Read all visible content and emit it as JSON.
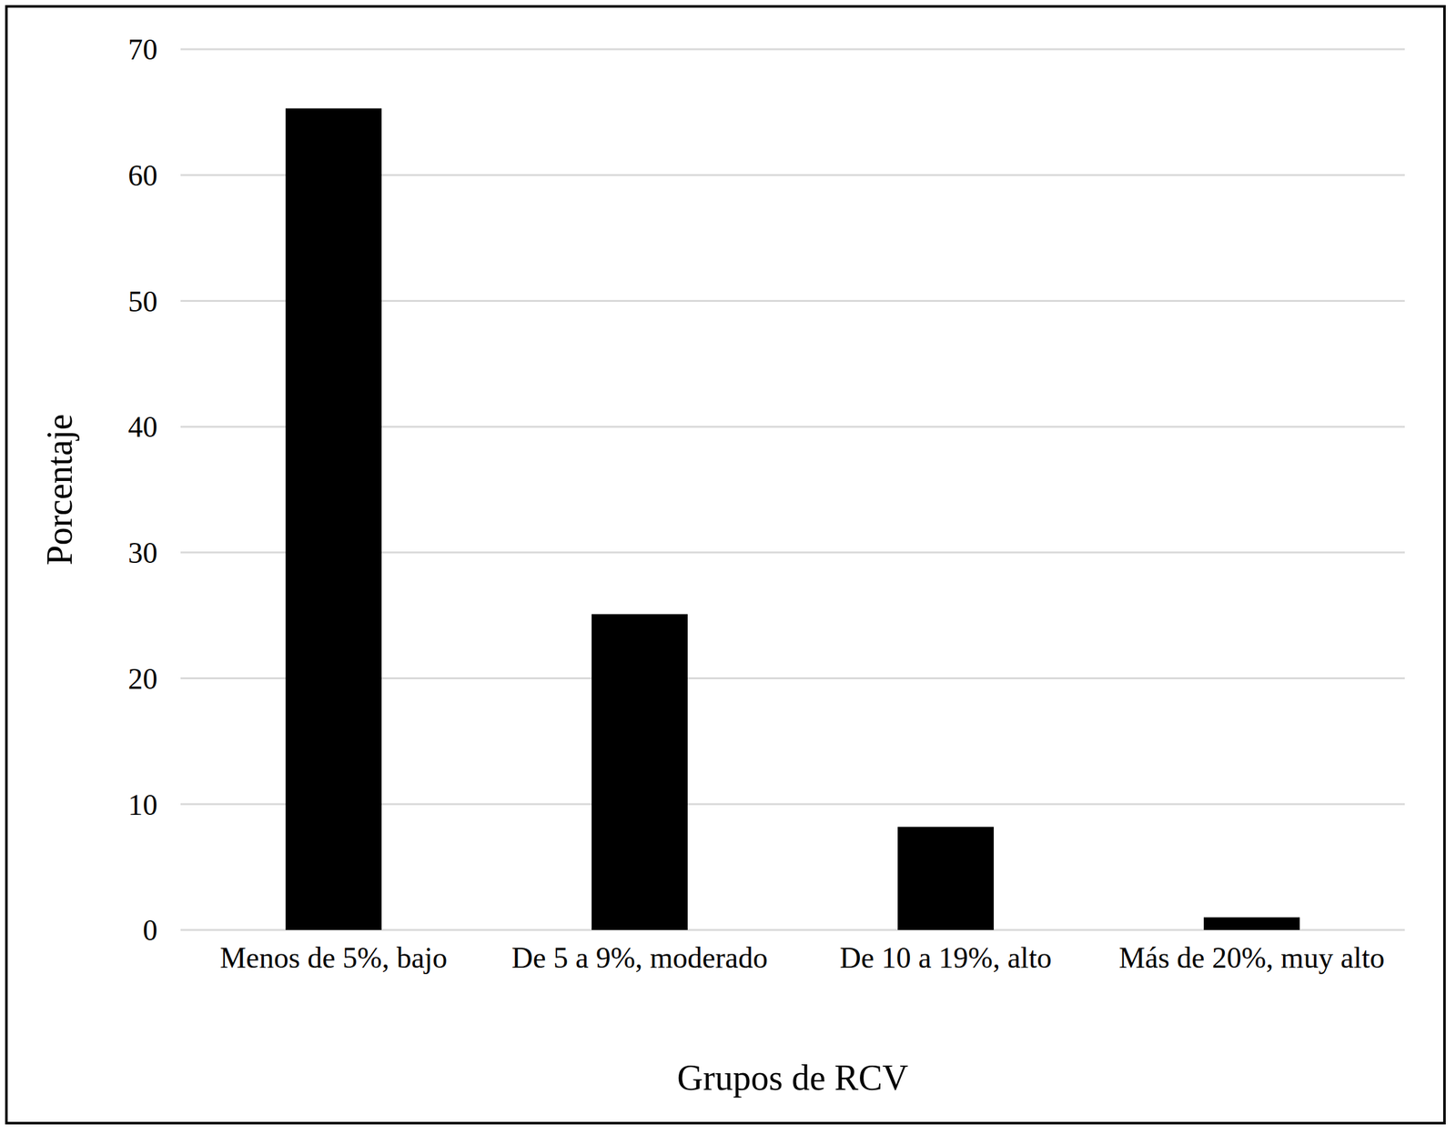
{
  "chart_data": {
    "type": "bar",
    "xlabel": "Grupos de RCV",
    "ylabel": "Porcentaje",
    "categories": [
      "Menos de 5%, bajo",
      "De 5 a 9%, moderado",
      "De 10 a 19%, alto",
      "Más de 20%, muy alto"
    ],
    "values": [
      65.3,
      25.1,
      8.2,
      1.0
    ],
    "color": "#000000",
    "ylim": [
      0,
      70
    ],
    "yticks": [
      0,
      10,
      20,
      30,
      40,
      50,
      60,
      70
    ],
    "grid": true
  }
}
